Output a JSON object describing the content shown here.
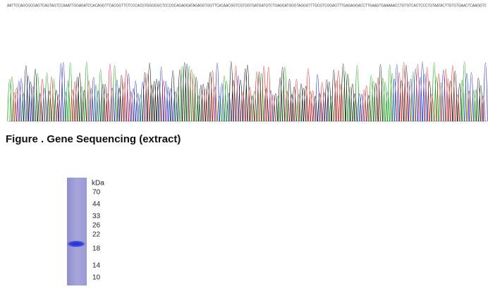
{
  "sequence": "AATTCCAGCGCGAGTCAGTAGTCCAAATTGGAGATCCACAGGTTCACGGTTCTCCCACGTGGGGGCTCCCGCAGAGGATAGAGGTGGTTCACAACGGTCGTGGTGATGATGTCTGAGGATGGGTAGGGTTTGCGTCGGAGTTTGAGAGGACCTTGAAGTGAAAAACCTGTGTCACTCCCTGTAATACTTGTGTGAACTCAAGGTC",
  "caption": "Figure . Gene Sequencing (extract)",
  "gel": {
    "unit": "kDa",
    "markers": [
      70,
      44,
      33,
      26,
      22,
      18,
      14,
      10
    ]
  }
}
